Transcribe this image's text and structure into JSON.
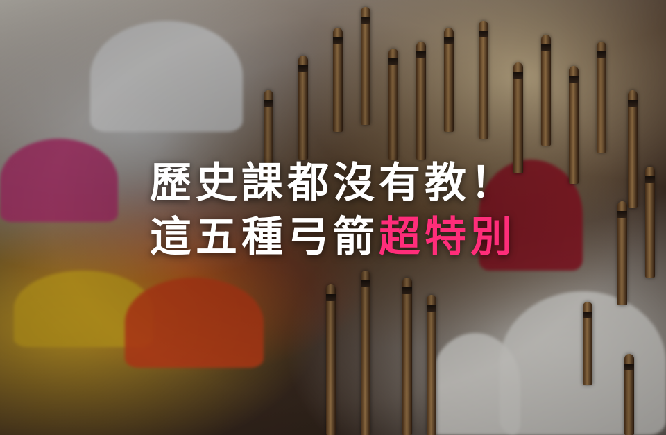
{
  "headline": {
    "line1": "歷史課都沒有教！",
    "line2_white": "這五種弓箭",
    "line2_accent": "超特別"
  },
  "colors": {
    "text": "#ffffff",
    "accent": "#ff2d7a"
  }
}
